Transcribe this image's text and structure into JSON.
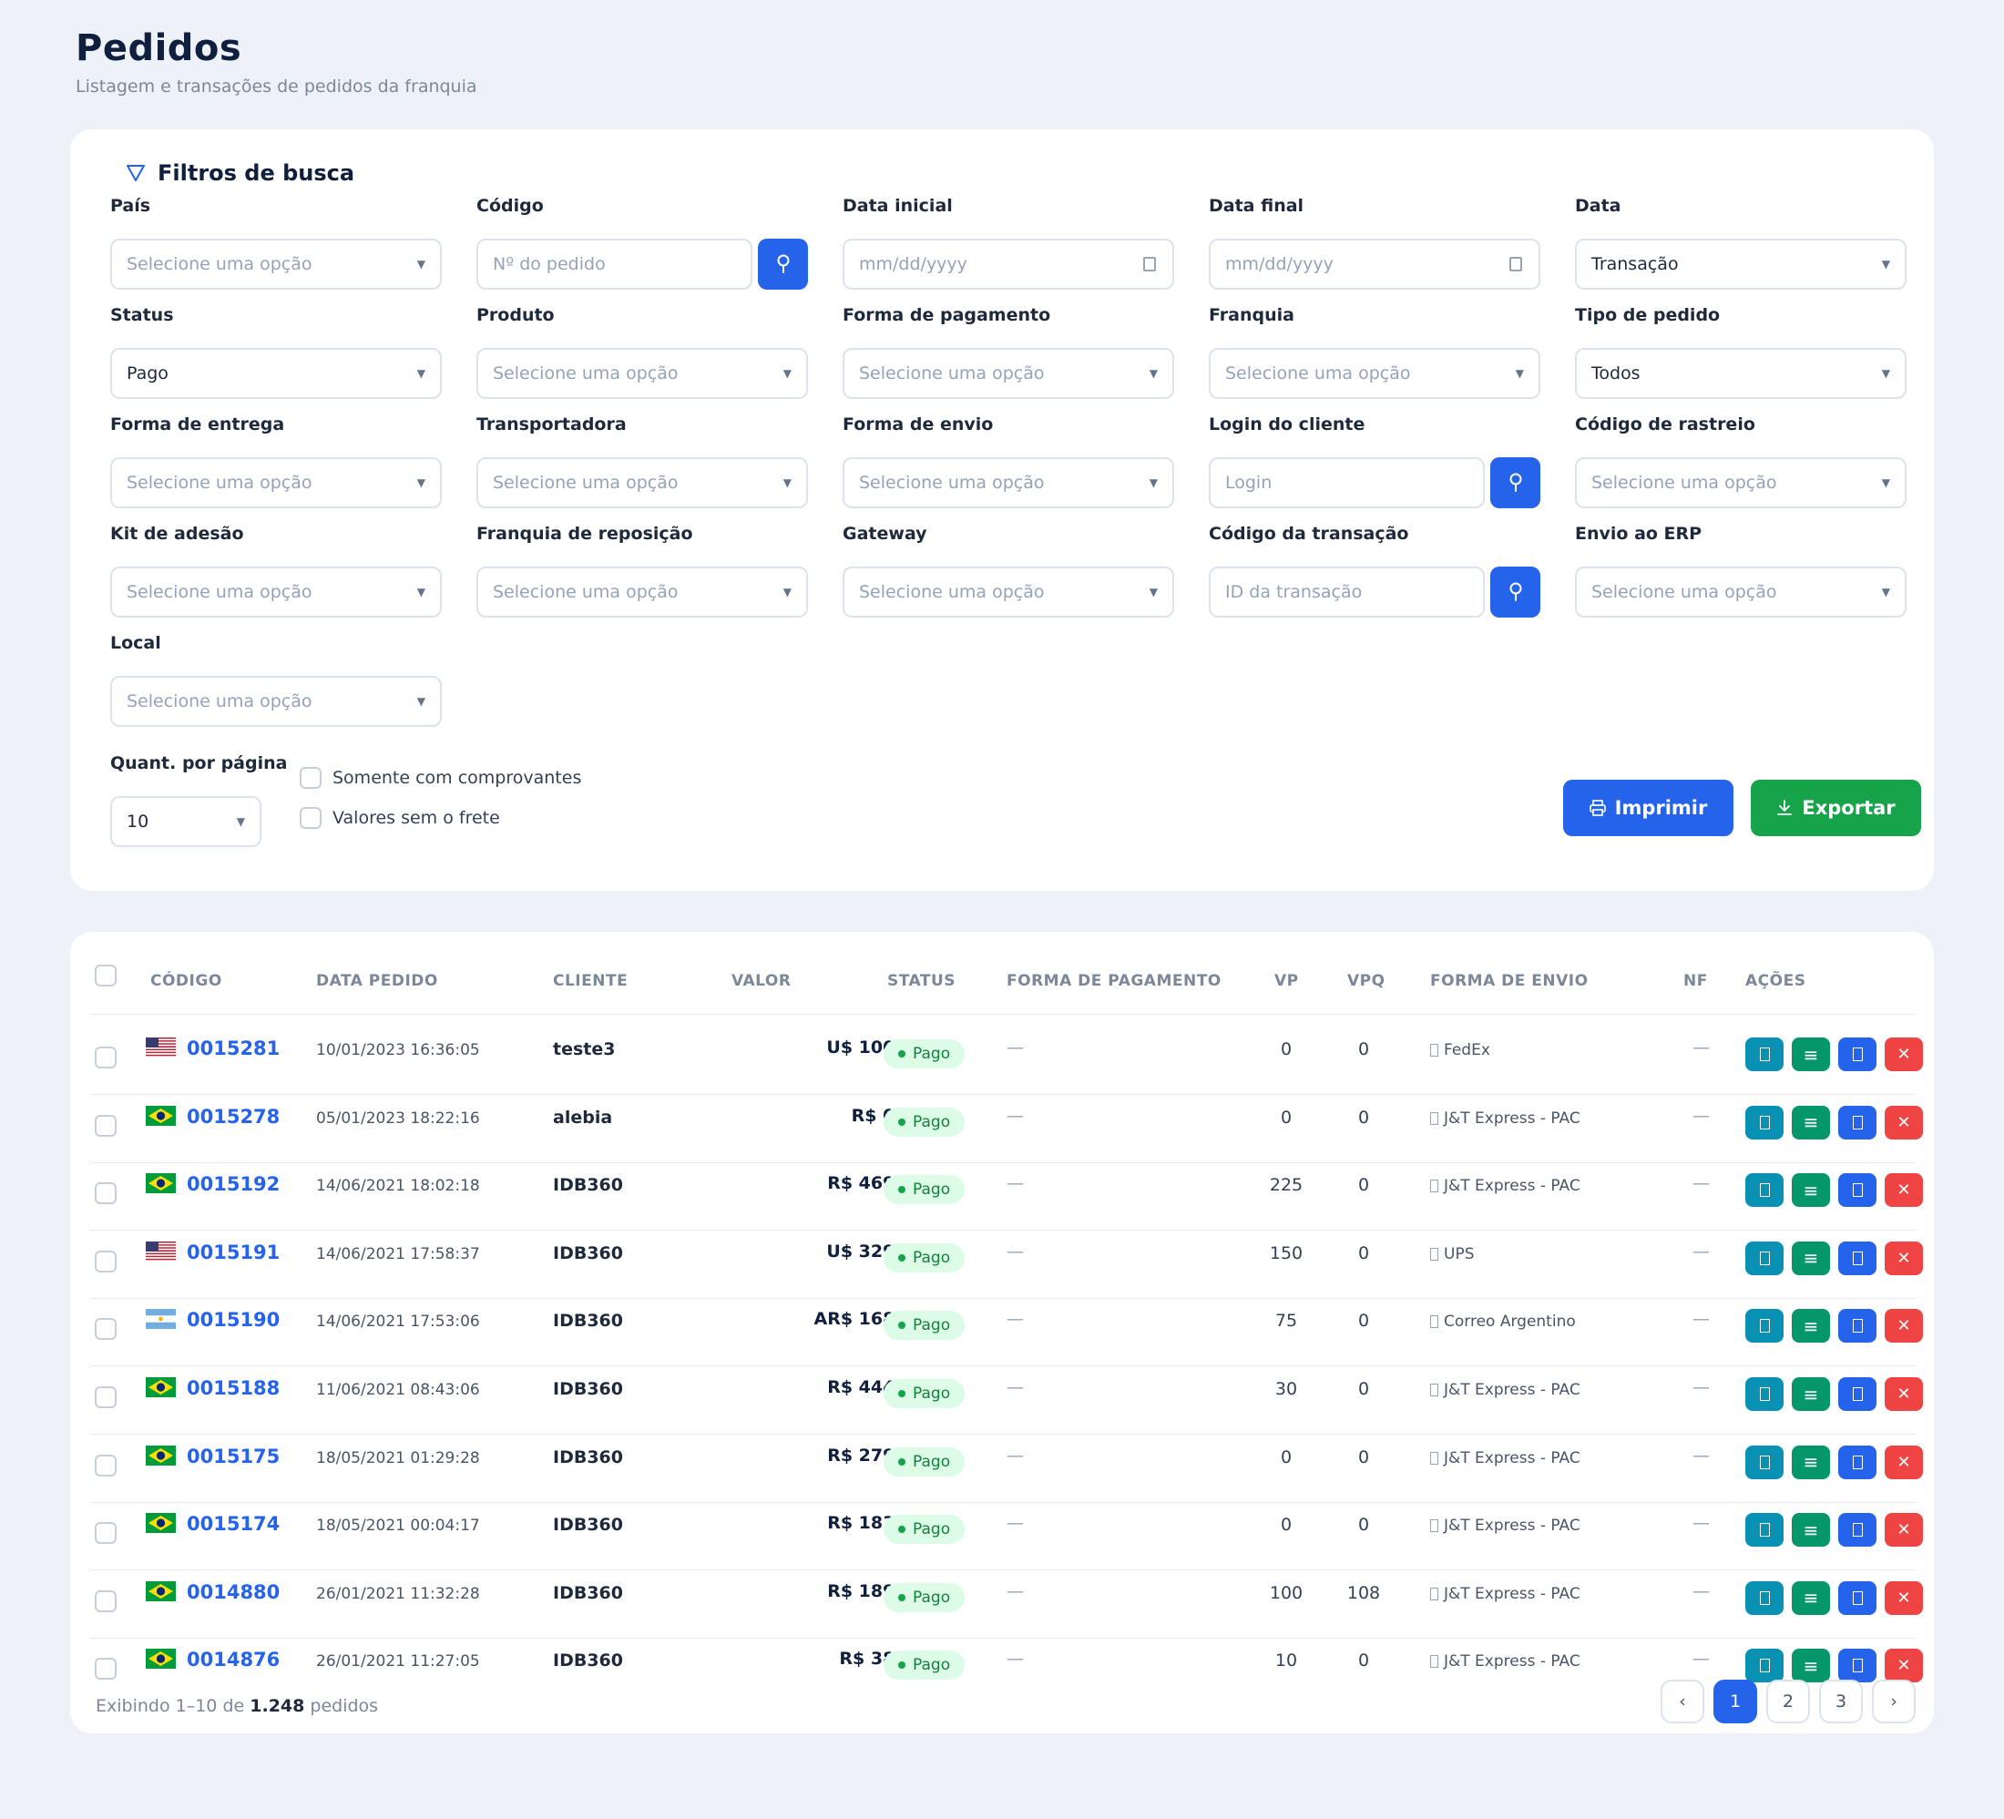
{
  "header": {
    "title": "Pedidos",
    "subtitle": "Listagem e transações de pedidos da franquia"
  },
  "filters": {
    "title": "Filtros de busca",
    "fields": [
      {
        "label": "País",
        "kind": "select",
        "placeholder": "Selecione uma opção",
        "value": ""
      },
      {
        "label": "Código",
        "kind": "search",
        "placeholder": "Nº do pedido",
        "value": ""
      },
      {
        "label": "Data inicial",
        "kind": "date",
        "placeholder": "mm/dd/yyyy",
        "value": ""
      },
      {
        "label": "Data final",
        "kind": "date",
        "placeholder": "mm/dd/yyyy",
        "value": ""
      },
      {
        "label": "Data",
        "kind": "select",
        "placeholder": "",
        "value": "Transação"
      },
      {
        "label": "Status",
        "kind": "select",
        "placeholder": "",
        "value": "Pago"
      },
      {
        "label": "Produto",
        "kind": "select",
        "placeholder": "Selecione uma opção",
        "value": ""
      },
      {
        "label": "Forma de pagamento",
        "kind": "select",
        "placeholder": "Selecione uma opção",
        "value": ""
      },
      {
        "label": "Franquia",
        "kind": "select",
        "placeholder": "Selecione uma opção",
        "value": ""
      },
      {
        "label": "Tipo de pedido",
        "kind": "select",
        "placeholder": "",
        "value": "Todos"
      },
      {
        "label": "Forma de entrega",
        "kind": "select",
        "placeholder": "Selecione uma opção",
        "value": ""
      },
      {
        "label": "Transportadora",
        "kind": "select",
        "placeholder": "Selecione uma opção",
        "value": ""
      },
      {
        "label": "Forma de envio",
        "kind": "select",
        "placeholder": "Selecione uma opção",
        "value": ""
      },
      {
        "label": "Login do cliente",
        "kind": "search",
        "placeholder": "Login",
        "value": ""
      },
      {
        "label": "Código de rastreio",
        "kind": "select",
        "placeholder": "Selecione uma opção",
        "value": ""
      },
      {
        "label": "Kit de adesão",
        "kind": "select",
        "placeholder": "Selecione uma opção",
        "value": ""
      },
      {
        "label": "Franquia de reposição",
        "kind": "select",
        "placeholder": "Selecione uma opção",
        "value": ""
      },
      {
        "label": "Gateway",
        "kind": "select",
        "placeholder": "Selecione uma opção",
        "value": ""
      },
      {
        "label": "Código da transação",
        "kind": "search",
        "placeholder": "ID da transação",
        "value": ""
      },
      {
        "label": "Envio ao ERP",
        "kind": "select",
        "placeholder": "Selecione uma opção",
        "value": ""
      },
      {
        "label": "Local",
        "kind": "select",
        "placeholder": "Selecione uma opção",
        "value": ""
      }
    ],
    "per_page": {
      "label": "Quant. por página",
      "value": "10"
    },
    "checkboxes": [
      {
        "label": "Somente com comprovantes",
        "checked": false
      },
      {
        "label": "Valores sem o frete",
        "checked": false
      }
    ],
    "print_label": "Imprimir",
    "export_label": "Exportar"
  },
  "table": {
    "columns": [
      "CÓDIGO",
      "DATA PEDIDO",
      "CLIENTE",
      "VALOR",
      "STATUS",
      "FORMA DE PAGAMENTO",
      "VP",
      "VPQ",
      "FORMA DE ENVIO",
      "NF",
      "AÇÕES"
    ],
    "rows": [
      {
        "flag": "us",
        "code": "0015281",
        "date": "10/01/2023 16:36:05",
        "client": "teste3",
        "value": "U$ 100,00",
        "status": "Pago",
        "payment": "—",
        "vp": "0",
        "vpq": "0",
        "shipping": "FedEx",
        "nf": "—"
      },
      {
        "flag": "br",
        "code": "0015278",
        "date": "05/01/2023 18:22:16",
        "client": "alebia",
        "value": "R$ 0,00",
        "status": "Pago",
        "payment": "—",
        "vp": "0",
        "vpq": "0",
        "shipping": "J&T Express - PAC",
        "nf": "—"
      },
      {
        "flag": "br",
        "code": "0015192",
        "date": "14/06/2021 18:02:18",
        "client": "IDB360",
        "value": "R$ 469,68",
        "status": "Pago",
        "payment": "—",
        "vp": "225",
        "vpq": "0",
        "shipping": "J&T Express - PAC",
        "nf": "—"
      },
      {
        "flag": "us",
        "code": "0015191",
        "date": "14/06/2021 17:58:37",
        "client": "IDB360",
        "value": "U$ 329,41",
        "status": "Pago",
        "payment": "—",
        "vp": "150",
        "vpq": "0",
        "shipping": "UPS",
        "nf": "—"
      },
      {
        "flag": "ar",
        "code": "0015190",
        "date": "14/06/2021 17:53:06",
        "client": "IDB360",
        "value": "AR$ 168,36",
        "status": "Pago",
        "payment": "—",
        "vp": "75",
        "vpq": "0",
        "shipping": "Correo Argentino",
        "nf": "—"
      },
      {
        "flag": "br",
        "code": "0015188",
        "date": "11/06/2021 08:43:06",
        "client": "IDB360",
        "value": "R$ 444,68",
        "status": "Pago",
        "payment": "—",
        "vp": "30",
        "vpq": "0",
        "shipping": "J&T Express - PAC",
        "nf": "—"
      },
      {
        "flag": "br",
        "code": "0015175",
        "date": "18/05/2021 01:29:28",
        "client": "IDB360",
        "value": "R$ 279,68",
        "status": "Pago",
        "payment": "—",
        "vp": "0",
        "vpq": "0",
        "shipping": "J&T Express - PAC",
        "nf": "—"
      },
      {
        "flag": "br",
        "code": "0015174",
        "date": "18/05/2021 00:04:17",
        "client": "IDB360",
        "value": "R$ 183,36",
        "status": "Pago",
        "payment": "—",
        "vp": "0",
        "vpq": "0",
        "shipping": "J&T Express - PAC",
        "nf": "—"
      },
      {
        "flag": "br",
        "code": "0014880",
        "date": "26/01/2021 11:32:28",
        "client": "IDB360",
        "value": "R$ 189,68",
        "status": "Pago",
        "payment": "—",
        "vp": "100",
        "vpq": "108",
        "shipping": "J&T Express - PAC",
        "nf": "—"
      },
      {
        "flag": "br",
        "code": "0014876",
        "date": "26/01/2021 11:27:05",
        "client": "IDB360",
        "value": "R$ 38,36",
        "status": "Pago",
        "payment": "—",
        "vp": "10",
        "vpq": "0",
        "shipping": "J&T Express - PAC",
        "nf": "—"
      }
    ]
  },
  "footer": {
    "info_prefix": "Exibindo 1–10 de",
    "total": "1.248",
    "info_suffix": "pedidos",
    "pages": [
      "1",
      "2",
      "3"
    ],
    "active_page": "1",
    "prev": "‹",
    "next": "›"
  },
  "colors": {
    "primary": "#2563eb",
    "success": "#16a34a",
    "danger": "#ef4444",
    "info": "#0891b2",
    "teal": "#059669"
  }
}
